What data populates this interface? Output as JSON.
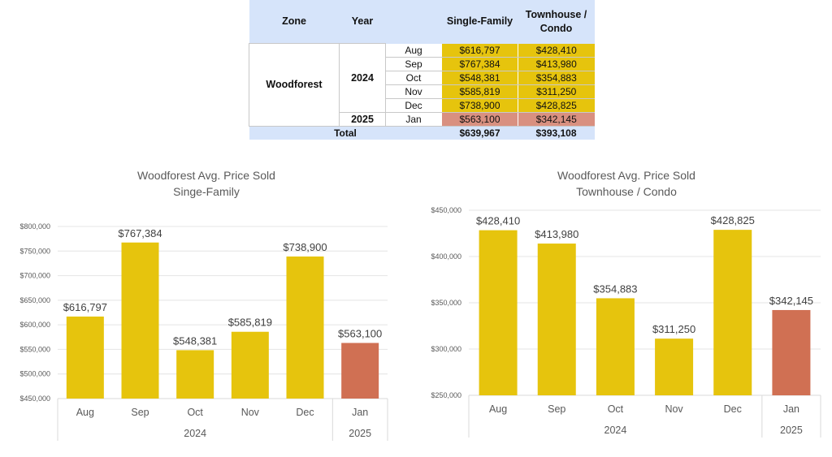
{
  "table": {
    "headers": {
      "zone": "Zone",
      "year": "Year",
      "single": "Single-Family",
      "town": "Townhouse / Condo"
    },
    "zone": "Woodforest",
    "years": [
      "2024",
      "2025"
    ],
    "rows": [
      {
        "month": "Aug",
        "single": "$616,797",
        "town": "$428,410"
      },
      {
        "month": "Sep",
        "single": "$767,384",
        "town": "$413,980"
      },
      {
        "month": "Oct",
        "single": "$548,381",
        "town": "$354,883"
      },
      {
        "month": "Nov",
        "single": "$585,819",
        "town": "$311,250"
      },
      {
        "month": "Dec",
        "single": "$738,900",
        "town": "$428,825"
      },
      {
        "month": "Jan",
        "single": "$563,100",
        "town": "$342,145"
      }
    ],
    "total": {
      "label": "Total",
      "single": "$639,967",
      "town": "$393,108"
    }
  },
  "colors": {
    "gold": "#e6c40d",
    "red": "#d07053",
    "grid": "#e4e4e4",
    "text": "#595959"
  },
  "chart_data": [
    {
      "type": "bar",
      "title": "Woodforest Avg. Price Sold",
      "subtitle": "Singe-Family",
      "categories": [
        "Aug",
        "Sep",
        "Oct",
        "Nov",
        "Dec",
        "Jan"
      ],
      "groups": [
        {
          "label": "2024",
          "count": 5
        },
        {
          "label": "2025",
          "count": 1
        }
      ],
      "values": [
        616797,
        767384,
        548381,
        585819,
        738900,
        563100
      ],
      "labels": [
        "$616,797",
        "$767,384",
        "$548,381",
        "$585,819",
        "$738,900",
        "$563,100"
      ],
      "ylim": [
        450000,
        800000
      ],
      "ystep": 50000,
      "yticks": [
        "$450,000",
        "$500,000",
        "$550,000",
        "$600,000",
        "$650,000",
        "$700,000",
        "$750,000",
        "$800,000"
      ],
      "grid": true
    },
    {
      "type": "bar",
      "title": "Woodforest Avg. Price Sold",
      "subtitle": "Townhouse / Condo",
      "categories": [
        "Aug",
        "Sep",
        "Oct",
        "Nov",
        "Dec",
        "Jan"
      ],
      "groups": [
        {
          "label": "2024",
          "count": 5
        },
        {
          "label": "2025",
          "count": 1
        }
      ],
      "values": [
        428410,
        413980,
        354883,
        311250,
        428825,
        342145
      ],
      "labels": [
        "$428,410",
        "$413,980",
        "$354,883",
        "$311,250",
        "$428,825",
        "$342,145"
      ],
      "ylim": [
        250000,
        450000
      ],
      "ystep": 50000,
      "yticks": [
        "$250,000",
        "$300,000",
        "$350,000",
        "$400,000",
        "$450,000"
      ],
      "grid": true
    }
  ]
}
